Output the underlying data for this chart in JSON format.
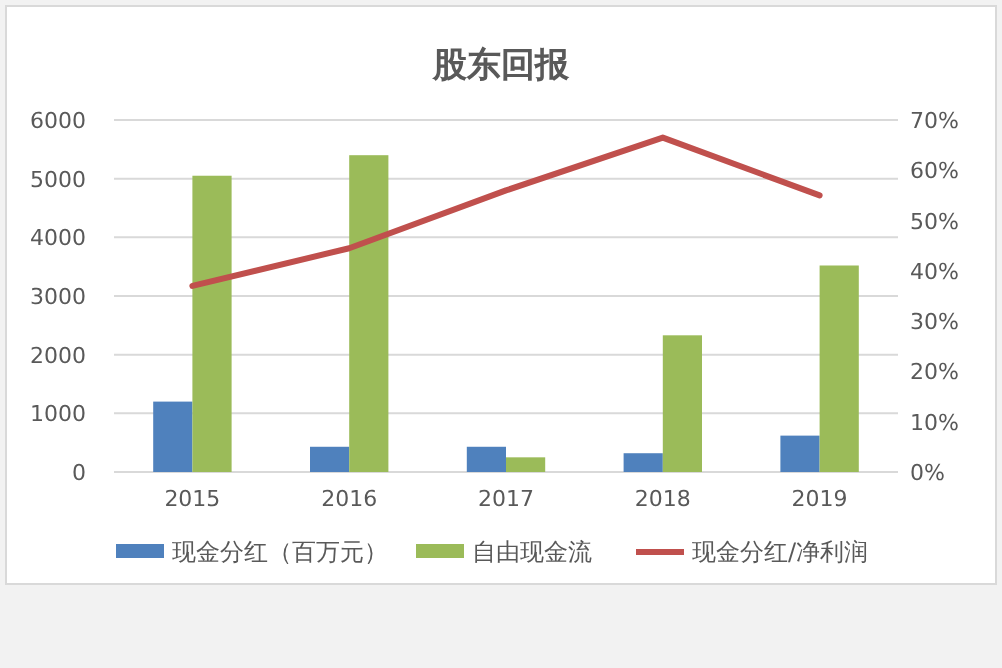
{
  "chart_data": {
    "type": "bar",
    "title": "股东回报",
    "categories": [
      "2015",
      "2016",
      "2017",
      "2018",
      "2019"
    ],
    "series": [
      {
        "name": "现金分红（百万元）",
        "color": "#4f81bd",
        "values": [
          1200,
          430,
          430,
          320,
          620
        ]
      },
      {
        "name": "自由现金流",
        "color": "#9bbb59",
        "values": [
          5050,
          5400,
          250,
          2330,
          3520
        ]
      },
      {
        "name": "现金分红/净利润",
        "type": "line",
        "axis": "y2",
        "color": "#c0504d",
        "values": [
          37,
          44.5,
          56,
          66.5,
          55
        ]
      }
    ],
    "ylim": [
      0,
      6000
    ],
    "yticks": [
      0,
      1000,
      2000,
      3000,
      4000,
      5000,
      6000
    ],
    "y2lim": [
      0,
      70
    ],
    "y2ticks": [
      {
        "value": 0,
        "label": "0%"
      },
      {
        "value": 10,
        "label": "10%"
      },
      {
        "value": 20,
        "label": "20%"
      },
      {
        "value": 30,
        "label": "30%"
      },
      {
        "value": 40,
        "label": "40%"
      },
      {
        "value": 50,
        "label": "50%"
      },
      {
        "value": 60,
        "label": "60%"
      },
      {
        "value": 70,
        "label": "70%"
      }
    ],
    "grid": "y",
    "legend": "bottom"
  }
}
